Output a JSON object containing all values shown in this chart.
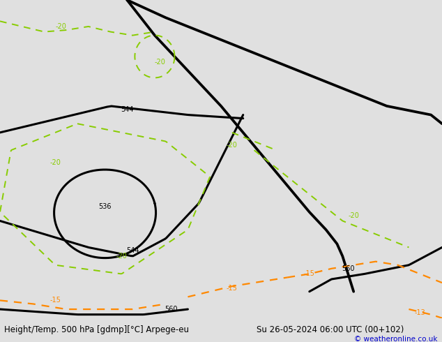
{
  "title_left": "Height/Temp. 500 hPa [gdmp][°C] Arpege-eu",
  "title_right": "Su 26-05-2024 06:00 UTC (00+102)",
  "credit": "© weatheronline.co.uk",
  "bg_color": "#e0e0e0",
  "land_color": "#c8e8a0",
  "sea_color": "#e0e0e0",
  "border_color": "#808080",
  "black": "#000000",
  "green": "#88cc00",
  "orange": "#ff8800",
  "black_lw": 2.2,
  "green_lw": 1.4,
  "orange_lw": 1.6,
  "label_fs": 7,
  "footer_fs": 8.5,
  "fig_width": 6.34,
  "fig_height": 4.9,
  "extent": [
    -25.0,
    15.0,
    47.0,
    65.0
  ]
}
